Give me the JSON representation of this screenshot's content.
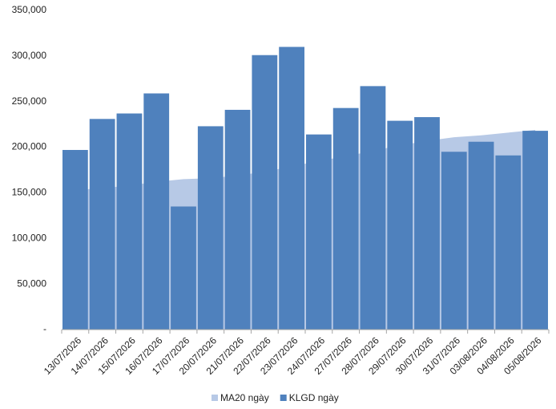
{
  "chart_data": {
    "type": "bar_area",
    "categories": [
      "13/07/2026",
      "14/07/2026",
      "15/07/2026",
      "16/07/2026",
      "17/07/2026",
      "20/07/2026",
      "21/07/2026",
      "22/07/2026",
      "23/07/2026",
      "24/07/2026",
      "27/07/2026",
      "28/07/2026",
      "29/07/2026",
      "30/07/2026",
      "31/07/2026",
      "03/08/2026",
      "04/08/2026",
      "05/08/2026"
    ],
    "series": [
      {
        "name": "MA20 ngày",
        "type": "area",
        "color": "#b7c9e6",
        "values": [
          153000,
          155000,
          158000,
          162000,
          165000,
          166000,
          169000,
          173000,
          179000,
          185000,
          190000,
          196000,
          202000,
          207000,
          211000,
          213000,
          216000,
          219000
        ]
      },
      {
        "name": "KLGD ngày",
        "type": "bar",
        "color": "#4f81bd",
        "values": [
          197000,
          231000,
          237000,
          259000,
          135000,
          223000,
          241000,
          301000,
          310000,
          214000,
          243000,
          267000,
          229000,
          233000,
          195000,
          206000,
          191000,
          218000
        ]
      }
    ],
    "ylim": [
      0,
      350000
    ],
    "yticks": [
      {
        "value": 0,
        "label": "-"
      },
      {
        "value": 50000,
        "label": "50,000"
      },
      {
        "value": 100000,
        "label": "100,000"
      },
      {
        "value": 150000,
        "label": "150,000"
      },
      {
        "value": 200000,
        "label": "200,000"
      },
      {
        "value": 250000,
        "label": "250,000"
      },
      {
        "value": 300000,
        "label": "300,000"
      },
      {
        "value": 350000,
        "label": "350,000"
      }
    ],
    "grid": false,
    "legend": "bottom"
  }
}
